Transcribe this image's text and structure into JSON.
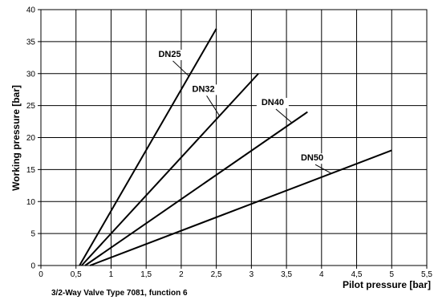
{
  "chart_data": {
    "type": "line",
    "caption": "3/2-Way Valve Type 7081,  function 6",
    "xlabel": "Pilot pressure [bar]",
    "ylabel": "Working pressure [bar]",
    "xlim": [
      0,
      5.5
    ],
    "ylim": [
      0,
      40
    ],
    "x_ticks": [
      "0",
      "0,5",
      "1",
      "1,5",
      "2",
      "2,5",
      "3",
      "3,5",
      "4",
      "4,5",
      "5",
      "5,5"
    ],
    "y_ticks": [
      "0",
      "5",
      "10",
      "15",
      "20",
      "25",
      "30",
      "35",
      "40"
    ],
    "grid": true,
    "series": [
      {
        "name": "DN25",
        "x": [
          0.55,
          2.5
        ],
        "y": [
          0,
          37
        ]
      },
      {
        "name": "DN32",
        "x": [
          0.58,
          3.1
        ],
        "y": [
          0,
          30
        ]
      },
      {
        "name": "DN40",
        "x": [
          0.63,
          3.8
        ],
        "y": [
          0,
          24
        ]
      },
      {
        "name": "DN50",
        "x": [
          0.7,
          5.0
        ],
        "y": [
          0,
          18
        ]
      }
    ]
  }
}
